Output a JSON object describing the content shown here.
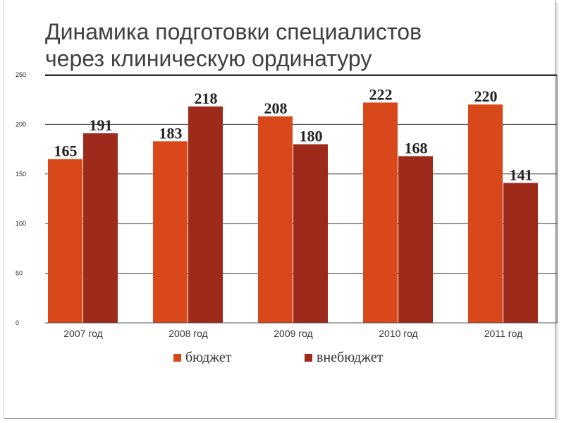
{
  "slide": {
    "title_line1": "Динамика подготовки специалистов",
    "title_line2": "через клиническую ординатуру"
  },
  "colors": {
    "budget": "#d9481a",
    "extrabudget": "#9e2a1c",
    "grid": "#333333",
    "title": "#404040"
  },
  "chart_data": {
    "type": "bar",
    "title": "",
    "xlabel": "",
    "ylabel": "",
    "categories": [
      "2007 год",
      "2008 год",
      "2009 год",
      "2010 год",
      "2011 год"
    ],
    "series": [
      {
        "name": "бюджет",
        "values": [
          165,
          183,
          208,
          222,
          220
        ],
        "color": "#d9481a"
      },
      {
        "name": "внебюджет",
        "values": [
          191,
          218,
          180,
          168,
          141
        ],
        "color": "#9e2a1c"
      }
    ],
    "yticks": [
      0,
      50,
      100,
      150,
      200,
      250
    ],
    "ylim": [
      0,
      250
    ],
    "grid": true,
    "legend_position": "bottom",
    "data_labels": true
  }
}
